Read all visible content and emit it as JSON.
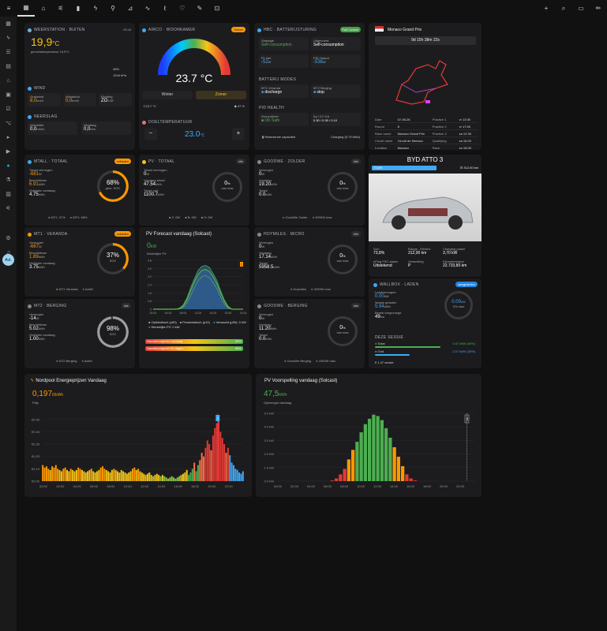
{
  "nav": {
    "top_icons": [
      "grid-icon",
      "home-icon",
      "network-icon",
      "battery-icon",
      "bolt-icon",
      "plug-icon",
      "chart-icon",
      "trend-icon",
      "thermometer-icon",
      "heart-icon",
      "wrench-icon",
      "car-icon"
    ],
    "right_icons": [
      "plus-icon",
      "search-icon",
      "chat-icon",
      "pencil-icon"
    ]
  },
  "sidebar": {
    "avatar": "AvL"
  },
  "weather": {
    "title": "WEERSTATION · BUITEN",
    "time": "23:16",
    "temp": "19,9",
    "unit": "°C",
    "feels": "gevoelstemperatuur 19,9°C",
    "humidity": "46%",
    "pressure": "1018 hPa",
    "wind_title": "WIND",
    "wind": [
      {
        "l": "Gradwind",
        "v": "8,0",
        "u": "km/h"
      },
      {
        "l": "Windstoot",
        "v": "0,0",
        "u": "km/h"
      },
      {
        "l": "Richting",
        "v": "ZO",
        "u": "135°"
      }
    ],
    "rain_title": "NEERSLAG",
    "rain": [
      {
        "l": "Intensiteit",
        "v": "0,0",
        "u": "mm/u"
      },
      {
        "l": "Vandaag",
        "v": "0,0",
        "u": "mm"
      }
    ],
    "sun_title": "STRALING",
    "sun": [
      {
        "l": "UV Index",
        "v": "0,0"
      },
      {
        "l": "Lux",
        "v": "0",
        "u": "lx"
      }
    ]
  },
  "airco": {
    "title": "AIRCO · WOONKAMER",
    "mode": "Zomer",
    "temp": "23.7 °C",
    "winter": "Winter",
    "zomer": "Zomer",
    "room_temp": "23.7 °C",
    "hum": "47 %",
    "target_title": "DOELTEMPERATUUR",
    "target": "23.0",
    "target_unit": "°C",
    "minus": "−",
    "plus": "+"
  },
  "hbc": {
    "title": "HBC · BATTERIJSTURING",
    "badge": "Full Control",
    "strategie_l": "Strategie",
    "strategie": "Self-consumption",
    "ultrawerd_l": "Uitgevoerd",
    "ultrawerd": "Self-consumption",
    "p1_l": "P1 Net",
    "p1": "-52",
    "p1u": "W",
    "pid_l": "PID Output",
    "pid": "-538",
    "pidu": "W",
    "modes_title": "BATTERIJ MODES",
    "m1_l": "MT1 Veranda",
    "m1": "discharge",
    "m2_l": "MT2 Berging",
    "m2": "stop",
    "health_title": "PID HEALTH",
    "g_l": "Gezondheid",
    "g": "OK Safe",
    "kp_l": "Kp / Ki / Kd",
    "kp": "0.30 / 0.30 / 0.10",
    "rest": "Resterende capaciteit",
    "charging": "Charging (5.79 kWh)"
  },
  "f1": {
    "title": "Monaco Grand Prix",
    "countdown": "9d 15h 38m 22s",
    "rows": [
      [
        "Date",
        "07-06-26",
        "Practice 1",
        "vr 13:30"
      ],
      [
        "Round",
        "8",
        "Practice 2",
        "vr 17:00"
      ],
      [
        "Race name",
        "Monaco Grand Prix",
        "Practice 3",
        "za 12:30"
      ],
      [
        "Circuit name",
        "Circuit de Monaco",
        "Qualifying",
        "za 16:00"
      ],
      [
        "Location",
        "Monaco",
        "Race",
        "zo 15:00"
      ],
      [
        "City",
        "Monte Carlo",
        "",
        ""
      ]
    ]
  },
  "mtall": {
    "title": "MTALL · TOTAAL",
    "badge": "ontladen",
    "vermogen_l": "Totaal vermogen",
    "vermogen": "-681",
    "vu": "W",
    "besch_l": "Beschikbaar",
    "besch": "6.91",
    "bu": "kWh",
    "ontl_l": "Ontladen vandaag",
    "ontl": "4.75",
    "ou": "kWh",
    "soc": "68",
    "socl": "gem. SOC",
    "foot1": "MT1: 37%",
    "foot2": "MT2: 98%",
    "soc_value": 68
  },
  "mt1": {
    "title": "MT1 · VERANDA",
    "badge": "ontladen",
    "vermogen_l": "Vermogen",
    "vermogen": "-667",
    "vu": "W",
    "besch_l": "Beschikbaar",
    "besch": "1.89",
    "bu": "kWh",
    "ontl_l": "Ontladen vandaag",
    "ontl": "3.75",
    "ou": "kWh",
    "soc": "37",
    "socl": "SOC",
    "foot1": "MT1 Veranda",
    "foot2": "Actief",
    "soc_value": 37
  },
  "mt2": {
    "title": "MT2 · BERGING",
    "badge": "idle",
    "vermogen_l": "Vermogen",
    "vermogen": "-14",
    "vu": "W",
    "besch_l": "Beschikbaar",
    "besch": "5.02",
    "bu": "kWh",
    "ontl_l": "Ontladen vandaag",
    "ontl": "1.00",
    "ou": "kWh",
    "soc": "98",
    "socl": "SOC",
    "foot1": "MT2 Berging",
    "foot2": "Actief",
    "soc_value": 98
  },
  "pv": {
    "title": "PV · TOTAAL",
    "badge": "idle",
    "vermogen_l": "Totaal vermogen",
    "vermogen": "0",
    "vu": "W",
    "vandaag_l": "Vandaag totaal",
    "vandaag": "47.54",
    "vdu": "kWh",
    "totaal_l": "Totaal ooit",
    "totaal": "1100.7",
    "tu": "kWh",
    "ring": "0",
    "ringu": "%",
    "ringl": "van max",
    "foot": [
      "Z: 0W",
      "B: 0W",
      "H: 0W"
    ]
  },
  "goodwe_z": {
    "title": "GOODWE · ZOLDER",
    "badge": "idle",
    "vermogen_l": "Vermogen",
    "vermogen": "0",
    "vu": "W",
    "vandaag_l": "Vandaag",
    "vandaag": "19.20",
    "vdu": "kWh",
    "totaal_l": "Totaal",
    "totaal": "0.0",
    "tu": "kWh",
    "ring": "0",
    "ringu": "%",
    "ringl": "van max",
    "foot1": "GoodWe Zolder",
    "foot2": "3000W max"
  },
  "hoymiles": {
    "title": "HOYMILES · MICRO",
    "badge": "idle",
    "vermogen_l": "Vermogen",
    "vermogen": "0",
    "vu": "W",
    "vandaag_l": "Vandaag",
    "vandaag": "17.14",
    "vdu": "kWh",
    "totaal_l": "Totaal",
    "totaal": "5958.5",
    "tu": "kWh",
    "ring": "0",
    "ringu": "%",
    "ringl": "van max",
    "foot1": "Hoymiles",
    "foot2": "3200W max"
  },
  "goodwe_b": {
    "title": "GOODWE · BERGING",
    "badge": "idle",
    "vermogen_l": "Vermogen",
    "vermogen": "0",
    "vu": "W",
    "vandaag_l": "Vandaag",
    "vandaag": "11.20",
    "vdu": "kWh",
    "totaal_l": "Totaal",
    "totaal": "0.0",
    "tu": "kWh",
    "ring": "0",
    "ringu": "%",
    "ringl": "van max",
    "foot1": "GoodWe Berging",
    "foot2": "1500W max"
  },
  "solcast": {
    "title": "PV Forecast vandaag (Solcast)",
    "val": "0",
    "unit": "kW",
    "sub": "Werkelijke PV",
    "legend": [
      "Optimistisch (p90)",
      "Pessimistisch (p10)",
      "Verwacht (p50): 0 kW",
      "Werkelijke PV: 0 kW"
    ],
    "n1_l": "Nauwkeurigheid vandaag",
    "n1": "95%",
    "n2_l": "Nauwkeurigheid 30 dagen",
    "n2": "98%"
  },
  "byd": {
    "title": "BYD ATTO 3",
    "soc": "73,8%",
    "range": "312,00 km",
    "stats": [
      {
        "l": "SoC",
        "v": "73,8%"
      },
      {
        "l": "Range - Electric",
        "v": "312,00 km"
      },
      {
        "l": "Charging power",
        "v": "3,70 kW"
      },
      {
        "l": "ePlug FSC status",
        "v": "Uitstekend"
      },
      {
        "l": "Versnelling",
        "v": "P"
      },
      {
        "l": "Kilometerstand",
        "v": "22.733,80 km"
      }
    ]
  },
  "wallbox": {
    "title": "WALLBOX · LADEN",
    "badge": "aangesloten",
    "lv_l": "Laadvermogen",
    "lv": "0.00",
    "lvu": "kW",
    "sg_l": "Sessie geladen",
    "sg": "5.94",
    "sgu": "kWh",
    "bk_l": "Bereik toegevoegd",
    "bk": "49",
    "bku": "km",
    "ring": "0.00",
    "ringu": "kW",
    "ringl": "0% max",
    "sessie_title": "DEZE SESSIE",
    "solar_l": "Solar",
    "solar": "3.87 kWh (65%)",
    "grid_l": "Grid",
    "grid": "2.07 kWh (35%)",
    "cost": "€ 1.47 sessie",
    "solar_frac": 0.65,
    "grid_frac": 0.35
  },
  "nordpool": {
    "title": "Nordpool Energieprijzen Vandaag",
    "price": "0,197",
    "unit": "€/kWh",
    "sub": "Prijs"
  },
  "pvforecast": {
    "title": "PV Voorspelling vandaag (Solcast)",
    "val": "47,5",
    "unit": "kWh",
    "sub": "Opbrengst vandaag"
  },
  "chart_data": [
    {
      "type": "bar",
      "title": "Nordpool Energieprijzen Vandaag",
      "ylabel": "Prijs",
      "yticks": [
        "€0.05",
        "€0.15",
        "€0.25",
        "€0.35",
        "€0.45",
        "€0.55"
      ],
      "ylim": [
        0.05,
        0.6
      ],
      "xticks": [
        "00:00",
        "02:00",
        "04:00",
        "06:00",
        "08:00",
        "10:00",
        "12:00",
        "14:00",
        "16:00",
        "18:00",
        "20:00",
        "22:00"
      ],
      "marker": "2",
      "values": [
        0.18,
        0.16,
        0.17,
        0.15,
        0.14,
        0.17,
        0.16,
        0.18,
        0.15,
        0.14,
        0.13,
        0.15,
        0.16,
        0.14,
        0.13,
        0.15,
        0.14,
        0.13,
        0.14,
        0.16,
        0.15,
        0.14,
        0.13,
        0.12,
        0.13,
        0.14,
        0.15,
        0.13,
        0.12,
        0.13,
        0.14,
        0.16,
        0.17,
        0.15,
        0.14,
        0.13,
        0.12,
        0.14,
        0.15,
        0.14,
        0.13,
        0.12,
        0.14,
        0.13,
        0.12,
        0.11,
        0.12,
        0.13,
        0.15,
        0.16,
        0.14,
        0.15,
        0.13,
        0.12,
        0.11,
        0.1,
        0.11,
        0.12,
        0.1,
        0.09,
        0.1,
        0.11,
        0.1,
        0.09,
        0.1,
        0.09,
        0.08,
        0.07,
        0.08,
        0.09,
        0.08,
        0.07,
        0.08,
        0.09,
        0.1,
        0.11,
        0.12,
        0.14,
        0.1,
        0.12,
        0.15,
        0.2,
        0.13,
        0.18,
        0.22,
        0.28,
        0.25,
        0.32,
        0.38,
        0.35,
        0.3,
        0.42,
        0.48,
        0.52,
        0.58,
        0.45,
        0.4,
        0.35,
        0.28,
        0.32,
        0.26,
        0.2,
        0.18,
        0.15,
        0.14,
        0.12,
        0.11,
        0.13
      ]
    },
    {
      "type": "bar",
      "title": "PV Voorspelling vandaag (Solcast)",
      "ylabel": "Opbrengst vandaag",
      "yticks": [
        "0.0 kW",
        "1.0 kW",
        "2.0 kW",
        "3.0 kW",
        "4.0 kW",
        "5.0 kW"
      ],
      "ylim": [
        0,
        5
      ],
      "xticks": [
        "00:00",
        "02:00",
        "04:00",
        "06:00",
        "08:00",
        "10:00",
        "12:00",
        "14:00",
        "16:00",
        "18:00",
        "20:00",
        "22:00"
      ],
      "marker": "NU",
      "values": [
        0,
        0,
        0,
        0,
        0,
        0,
        0,
        0,
        0,
        0,
        0,
        0,
        0,
        0.05,
        0.2,
        0.5,
        0.9,
        1.6,
        2.3,
        2.9,
        3.6,
        4.2,
        4.6,
        4.9,
        4.8,
        4.5,
        3.9,
        3.2,
        2.5,
        1.8,
        1.1,
        0.5,
        0.2,
        0.05,
        0,
        0,
        0,
        0,
        0,
        0,
        0,
        0,
        0,
        0,
        0,
        0,
        0,
        0
      ]
    },
    {
      "type": "area",
      "title": "PV Forecast vandaag (Solcast)",
      "yticks": [
        "0",
        "0.8",
        "1.6",
        "2.4",
        "3.2",
        "4.0",
        "4.8"
      ],
      "ylim": [
        0,
        4.8
      ],
      "xticks": [
        "00:00",
        "04:00",
        "08:00",
        "12:00",
        "16:00",
        "20:00",
        "24:00"
      ],
      "marker": "2",
      "p50": [
        0,
        0,
        0,
        0,
        0,
        0,
        0,
        0.05,
        0.3,
        0.9,
        1.8,
        2.7,
        3.4,
        3.8,
        3.9,
        3.7,
        3.2,
        2.5,
        1.6,
        0.8,
        0.2,
        0,
        0,
        0,
        0
      ],
      "p90": [
        0,
        0,
        0,
        0,
        0,
        0,
        0,
        0.1,
        0.4,
        1.1,
        2.1,
        3.0,
        3.8,
        4.2,
        4.3,
        4.1,
        3.5,
        2.8,
        1.8,
        0.9,
        0.3,
        0,
        0,
        0,
        0
      ],
      "p10": [
        0,
        0,
        0,
        0,
        0,
        0,
        0,
        0.02,
        0.2,
        0.6,
        1.3,
        2.1,
        2.8,
        3.2,
        3.3,
        3.1,
        2.6,
        2.0,
        1.2,
        0.5,
        0.1,
        0,
        0,
        0,
        0
      ]
    }
  ]
}
